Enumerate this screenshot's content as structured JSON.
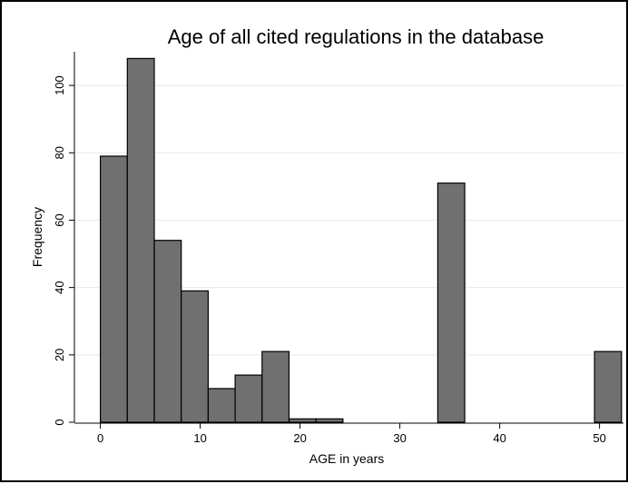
{
  "chart_data": {
    "type": "bar",
    "title": "Age of all cited regulations in the database",
    "xlabel": "AGE in years",
    "ylabel": "Frequency",
    "xlim": [
      -2.6,
      52.4
    ],
    "ylim": [
      0,
      110
    ],
    "xticks": [
      0,
      10,
      20,
      30,
      40,
      50
    ],
    "yticks": [
      0,
      20,
      40,
      60,
      80,
      100
    ],
    "grid": "horizontal",
    "bin_width": 2.7,
    "bins": [
      {
        "start": 0,
        "value": 79
      },
      {
        "start": 2.7,
        "value": 108
      },
      {
        "start": 5.4,
        "value": 54
      },
      {
        "start": 8.1,
        "value": 39
      },
      {
        "start": 10.8,
        "value": 10
      },
      {
        "start": 13.5,
        "value": 14
      },
      {
        "start": 16.2,
        "value": 21
      },
      {
        "start": 18.9,
        "value": 1
      },
      {
        "start": 21.6,
        "value": 1
      },
      {
        "start": 24.3,
        "value": 0
      },
      {
        "start": 27.0,
        "value": 0
      },
      {
        "start": 29.7,
        "value": 0
      },
      {
        "start": 32.4,
        "value": 0
      },
      {
        "start": 33.8,
        "value": 71
      },
      {
        "start": 49.5,
        "value": 21
      }
    ],
    "colors": {
      "bar_fill": "#707070",
      "bar_stroke": "#000000",
      "grid": "#e8e8e8",
      "axis": "#000000"
    }
  }
}
